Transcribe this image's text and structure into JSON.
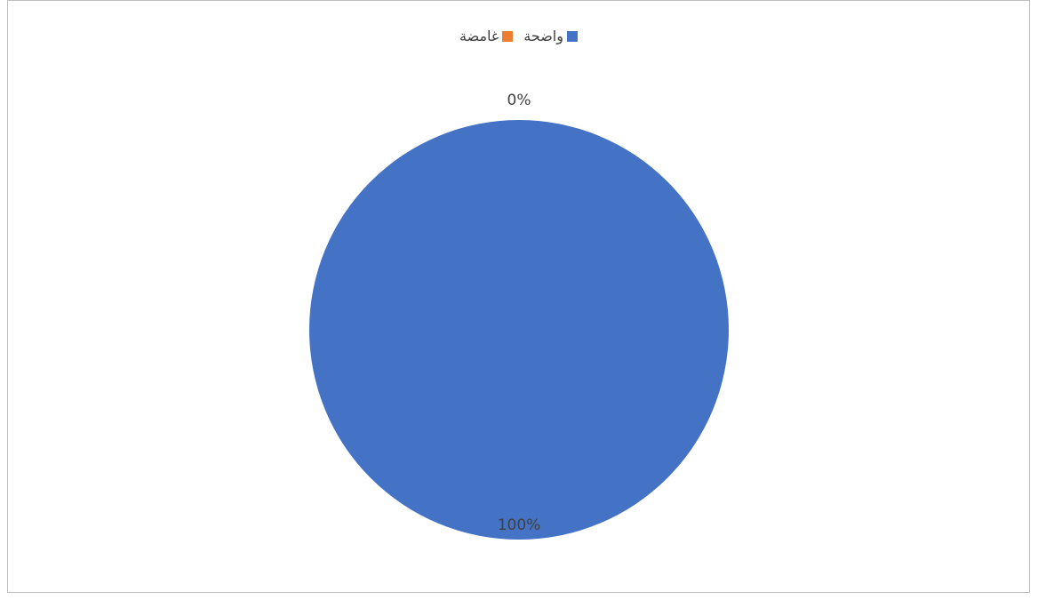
{
  "chart_data": {
    "type": "pie",
    "categories": [
      "واضحة",
      "غامضة"
    ],
    "values": [
      100,
      0
    ],
    "data_labels": [
      "100%",
      "0%"
    ],
    "colors": [
      "#4472c4",
      "#ed7d31"
    ],
    "legend": "top"
  }
}
